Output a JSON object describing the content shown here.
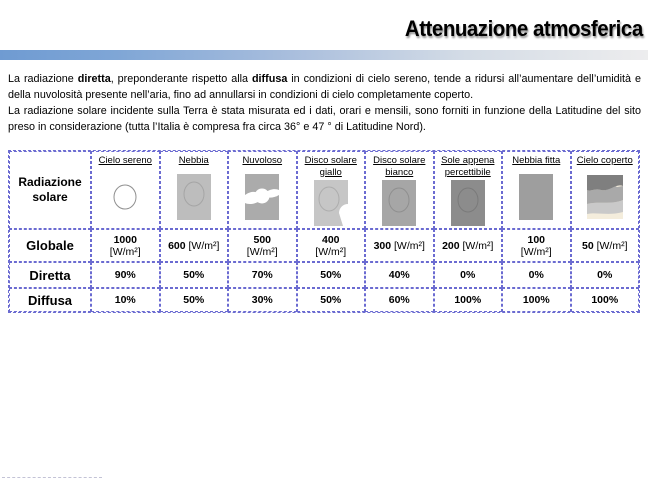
{
  "title": "Attenuazione atmosferica",
  "paragraphs": [
    {
      "segments": [
        {
          "text": "La radiazione ",
          "bold": false
        },
        {
          "text": "diretta",
          "bold": true
        },
        {
          "text": ", preponderante rispetto alla ",
          "bold": false
        },
        {
          "text": "diffusa",
          "bold": true
        },
        {
          "text": " in condizioni di cielo sereno, tende a ridursi all’aumentare dell’umidità e della nuvolosità presente nell’aria, fino ad annullarsi in condizioni di cielo completamente coperto.",
          "bold": false
        }
      ]
    },
    {
      "segments": [
        {
          "text": "La radiazione solare incidente sulla Terra è stata misurata ed i dati, orari e mensili, sono forniti in funzione della Latitudine del sito preso in considerazione (tutta l’Italia è compresa fra circa 36°  e 47 °  di Latitudine Nord).",
          "bold": false
        }
      ]
    }
  ],
  "table": {
    "corner_label_line1": "Radiazione",
    "corner_label_line2": "solare",
    "columns": [
      {
        "label": "Cielo sereno",
        "icon": "sun-outline-icon"
      },
      {
        "label": "Nebbia",
        "icon": "fog-icon"
      },
      {
        "label": "Nuvoloso",
        "icon": "cloudy-icon"
      },
      {
        "label": "Disco solare giallo",
        "icon": "sun-disc-notch-icon"
      },
      {
        "label": "Disco solare bianco",
        "icon": "sun-disc-icon"
      },
      {
        "label": "Sole appena percettibile",
        "icon": "sun-faint-icon"
      },
      {
        "label": "Nebbia fitta",
        "icon": "thick-fog-icon"
      },
      {
        "label": "Cielo coperto",
        "icon": "overcast-icon"
      }
    ],
    "rows": [
      {
        "label": "Globale",
        "values": [
          {
            "value": "1000",
            "unit": "[W/m²]",
            "wrap": true
          },
          {
            "value": "600",
            "unit": "[W/m²]",
            "wrap": false
          },
          {
            "value": "500",
            "unit": "[W/m²]",
            "wrap": true
          },
          {
            "value": "400",
            "unit": "[W/m²]",
            "wrap": true
          },
          {
            "value": "300",
            "unit": "[W/m²]",
            "wrap": false
          },
          {
            "value": "200",
            "unit": "[W/m²]",
            "wrap": false
          },
          {
            "value": "100",
            "unit": "[W/m²]",
            "wrap": true
          },
          {
            "value": "50",
            "unit": "[W/m²]",
            "wrap": false
          }
        ]
      },
      {
        "label": "Diretta",
        "values": [
          {
            "value": "90%"
          },
          {
            "value": "50%"
          },
          {
            "value": "70%"
          },
          {
            "value": "50%"
          },
          {
            "value": "40%"
          },
          {
            "value": "0%"
          },
          {
            "value": "0%"
          },
          {
            "value": "0%"
          }
        ]
      },
      {
        "label": "Diffusa",
        "values": [
          {
            "value": "10%"
          },
          {
            "value": "50%"
          },
          {
            "value": "30%"
          },
          {
            "value": "50%"
          },
          {
            "value": "60%"
          },
          {
            "value": "100%"
          },
          {
            "value": "100%"
          },
          {
            "value": "100%"
          }
        ]
      }
    ]
  },
  "colors": {
    "bar_gradient_left": "#6F9BD2",
    "bar_gradient_mid": "#A9BEDD",
    "bar_gradient_right": "#EDEDEE",
    "table_border": "#6B6BD1",
    "circle_stroke": "#909090",
    "icon_fog": "#BDBDBD",
    "icon_cloudy": "#ABABAB",
    "icon_disc_giallo": "#C6C6C6",
    "icon_disc_bianco": "#A6A6A6",
    "icon_sole_faint": "#8C8C8C",
    "icon_nebbia_fitta": "#9E9E9E",
    "icon_overcast_dark": "#7F7F7F",
    "icon_overcast_mid": "#A9A9A9",
    "icon_overcast_light": "#C9C9C9",
    "icon_overcast_cream": "#F4EDDC",
    "placeholder_dash": "#C3C3D6"
  }
}
